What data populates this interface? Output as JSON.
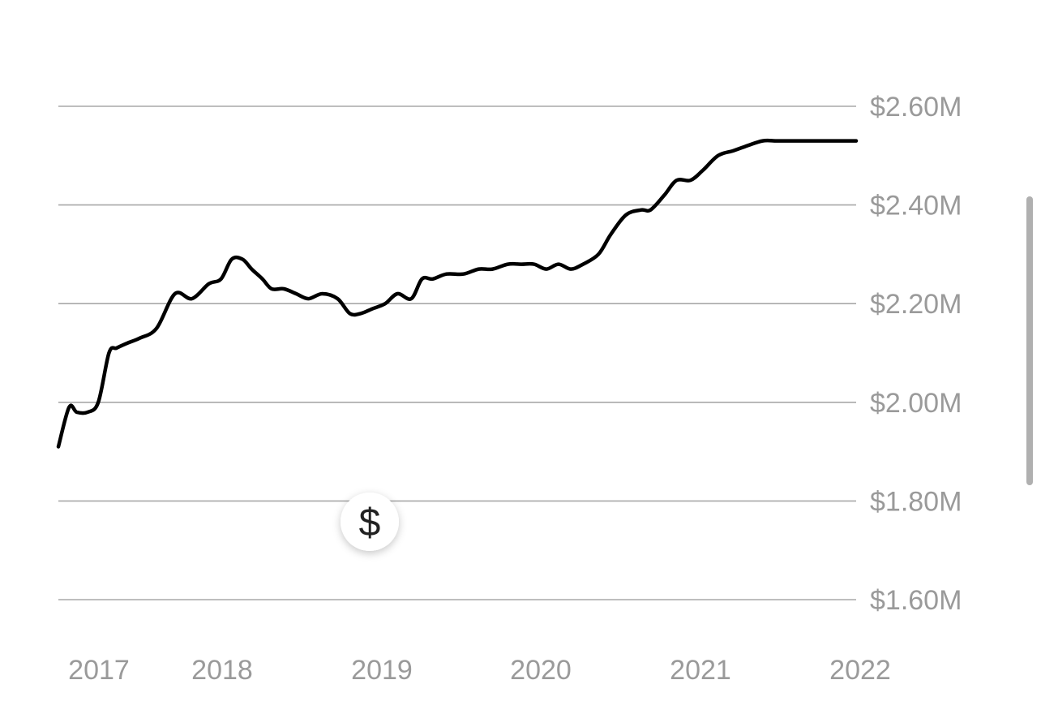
{
  "chart_data": {
    "type": "line",
    "title": "",
    "xlabel": "",
    "ylabel": "",
    "x_ticks": [
      "2017",
      "2018",
      "2019",
      "2020",
      "2021",
      "2022"
    ],
    "y_ticks": [
      "$1.60M",
      "$1.80M",
      "$2.00M",
      "$2.20M",
      "$2.40M",
      "$2.60M"
    ],
    "y_tick_values": [
      1.6,
      1.8,
      2.0,
      2.2,
      2.4,
      2.6
    ],
    "ylim": [
      1.6,
      2.6
    ],
    "xlim": [
      2016.8,
      2022.0
    ],
    "grid": true,
    "y_axis_side": "right",
    "series": [
      {
        "color": "#000000",
        "x": [
          2016.8,
          2016.87,
          2016.92,
          2016.99,
          2017.06,
          2017.13,
          2017.18,
          2017.25,
          2017.33,
          2017.44,
          2017.56,
          2017.67,
          2017.78,
          2017.86,
          2017.93,
          2018.0,
          2018.06,
          2018.13,
          2018.19,
          2018.27,
          2018.35,
          2018.43,
          2018.52,
          2018.62,
          2018.7,
          2018.77,
          2018.85,
          2018.93,
          2019.01,
          2019.1,
          2019.17,
          2019.24,
          2019.33,
          2019.44,
          2019.54,
          2019.63,
          2019.73,
          2019.82,
          2019.9,
          2019.98,
          2020.06,
          2020.14,
          2020.22,
          2020.32,
          2020.4,
          2020.5,
          2020.6,
          2020.66,
          2020.75,
          2020.83,
          2020.92,
          2021.0,
          2021.1,
          2021.2,
          2021.29,
          2021.39,
          2021.48,
          2021.57,
          2021.69,
          2021.79,
          2021.89,
          2021.95,
          2022.0
        ],
        "values": [
          1.91,
          1.99,
          1.98,
          1.98,
          2.0,
          2.1,
          2.11,
          2.12,
          2.13,
          2.15,
          2.22,
          2.21,
          2.24,
          2.25,
          2.29,
          2.29,
          2.27,
          2.25,
          2.23,
          2.23,
          2.22,
          2.21,
          2.22,
          2.21,
          2.18,
          2.18,
          2.19,
          2.2,
          2.22,
          2.21,
          2.25,
          2.25,
          2.26,
          2.26,
          2.27,
          2.27,
          2.28,
          2.28,
          2.28,
          2.27,
          2.28,
          2.27,
          2.28,
          2.3,
          2.34,
          2.38,
          2.39,
          2.39,
          2.42,
          2.45,
          2.45,
          2.47,
          2.5,
          2.51,
          2.52,
          2.53,
          2.53,
          2.53,
          2.53,
          2.53,
          2.53,
          2.53,
          2.53
        ]
      }
    ]
  },
  "icons": {
    "price_marker": "dollar-sign-icon",
    "price_marker_glyph": "$"
  }
}
